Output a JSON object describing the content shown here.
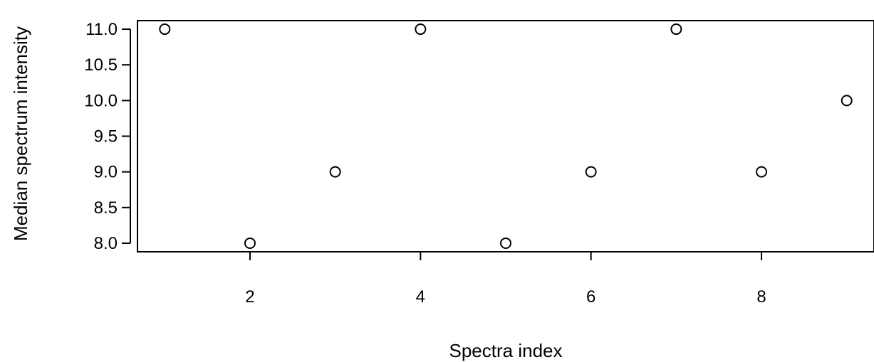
{
  "chart_data": {
    "type": "scatter",
    "xlabel": "Spectra index",
    "ylabel": "Median spectrum intensity",
    "x": [
      1,
      2,
      3,
      4,
      5,
      6,
      7,
      8,
      9
    ],
    "y": [
      11,
      8,
      9,
      11,
      8,
      9,
      11,
      9,
      10
    ],
    "xlim": [
      0.68,
      9.32
    ],
    "ylim": [
      7.88,
      11.12
    ],
    "xticks": [
      "2",
      "4",
      "6",
      "8"
    ],
    "xtick_values": [
      2,
      4,
      6,
      8
    ],
    "yticks": [
      "8.0",
      "8.5",
      "9.0",
      "9.5",
      "10.0",
      "10.5",
      "11.0"
    ],
    "ytick_values": [
      8.0,
      8.5,
      9.0,
      9.5,
      10.0,
      10.5,
      11.0
    ],
    "grid": false,
    "marker": "open-circle",
    "colors": {
      "marker_stroke": "#000000",
      "marker_fill": "#ffffff",
      "axis": "#000000"
    }
  }
}
